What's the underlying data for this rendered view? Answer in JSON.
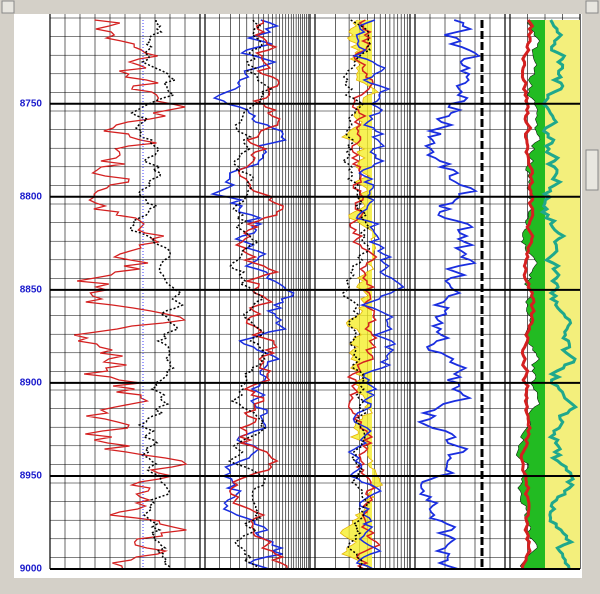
{
  "depth_axis": {
    "ylim": [
      8705,
      9000
    ],
    "yticks": [
      8750,
      8800,
      8850,
      8900,
      8950,
      9000
    ]
  }
}
